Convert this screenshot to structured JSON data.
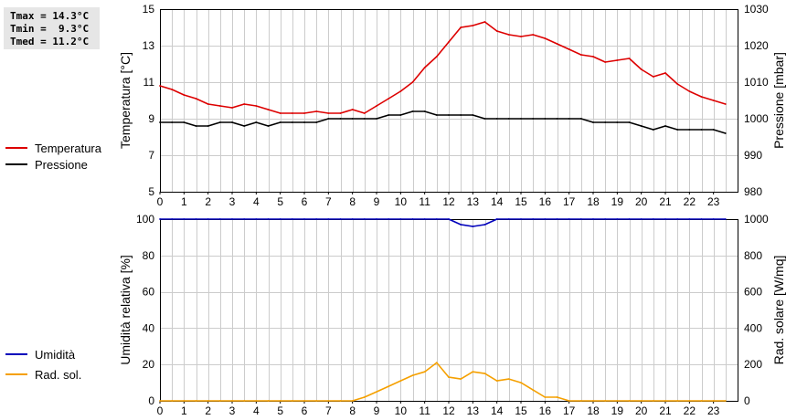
{
  "stats": {
    "tmax": "Tmax = 14.3°C",
    "tmin": "Tmin =  9.3°C",
    "tmed": "Tmed = 11.2°C"
  },
  "colors": {
    "temperature": "#dd0000",
    "pressure": "#000000",
    "humidity": "#0000bb",
    "solar": "#f5a000",
    "grid": "#cccccc"
  },
  "chart_data": [
    {
      "type": "line",
      "x_ticks": [
        "0",
        "1",
        "2",
        "3",
        "4",
        "5",
        "6",
        "7",
        "8",
        "9",
        "10",
        "11",
        "12",
        "13",
        "14",
        "15",
        "16",
        "17",
        "18",
        "19",
        "20",
        "21",
        "22",
        "23"
      ],
      "xlim": [
        0,
        24
      ],
      "ylabel": "Temperatura [°C]",
      "ylim": [
        5,
        15
      ],
      "y_ticks": [
        "5",
        "7",
        "9",
        "11",
        "13",
        "15"
      ],
      "ylabel_right": "Pressione [mbar]",
      "ylim_right": [
        980,
        1030
      ],
      "y_ticks_right": [
        "980",
        "990",
        "1000",
        "1010",
        "1020",
        "1030"
      ],
      "grid": true,
      "legend_position": "left",
      "series": [
        {
          "name": "Temperatura",
          "axis": "left",
          "x": [
            0,
            0.5,
            1,
            1.5,
            2,
            2.5,
            3,
            3.5,
            4,
            4.5,
            5,
            5.5,
            6,
            6.5,
            7,
            7.5,
            8,
            8.5,
            9,
            9.5,
            10,
            10.5,
            11,
            11.5,
            12,
            12.5,
            13,
            13.5,
            14,
            14.5,
            15,
            15.5,
            16,
            16.5,
            17,
            17.5,
            18,
            18.5,
            19,
            19.5,
            20,
            20.5,
            21,
            21.5,
            22,
            22.5,
            23,
            23.5
          ],
          "values": [
            10.8,
            10.6,
            10.3,
            10.1,
            9.8,
            9.7,
            9.6,
            9.8,
            9.7,
            9.5,
            9.3,
            9.3,
            9.3,
            9.4,
            9.3,
            9.3,
            9.5,
            9.3,
            9.7,
            10.1,
            10.5,
            11.0,
            11.8,
            12.4,
            13.2,
            14.0,
            14.1,
            14.3,
            13.8,
            13.6,
            13.5,
            13.6,
            13.4,
            13.1,
            12.8,
            12.5,
            12.4,
            12.1,
            12.2,
            12.3,
            11.7,
            11.3,
            11.5,
            10.9,
            10.5,
            10.2,
            10.0,
            9.8
          ]
        },
        {
          "name": "Pressione",
          "axis": "right",
          "x": [
            0,
            0.5,
            1,
            1.5,
            2,
            2.5,
            3,
            3.5,
            4,
            4.5,
            5,
            5.5,
            6,
            6.5,
            7,
            7.5,
            8,
            8.5,
            9,
            9.5,
            10,
            10.5,
            11,
            11.5,
            12,
            12.5,
            13,
            13.5,
            14,
            14.5,
            15,
            15.5,
            16,
            16.5,
            17,
            17.5,
            18,
            18.5,
            19,
            19.5,
            20,
            20.5,
            21,
            21.5,
            22,
            22.5,
            23,
            23.5
          ],
          "values": [
            999,
            999,
            999,
            998,
            998,
            999,
            999,
            998,
            999,
            998,
            999,
            999,
            999,
            999,
            1000,
            1000,
            1000,
            1000,
            1000,
            1001,
            1001,
            1002,
            1002,
            1001,
            1001,
            1001,
            1001,
            1000,
            1000,
            1000,
            1000,
            1000,
            1000,
            1000,
            1000,
            1000,
            999,
            999,
            999,
            999,
            998,
            997,
            998,
            997,
            997,
            997,
            997,
            996
          ]
        }
      ]
    },
    {
      "type": "line",
      "x_ticks": [
        "0",
        "1",
        "2",
        "3",
        "4",
        "5",
        "6",
        "7",
        "8",
        "9",
        "10",
        "11",
        "12",
        "13",
        "14",
        "15",
        "16",
        "17",
        "18",
        "19",
        "20",
        "21",
        "22",
        "23"
      ],
      "xlim": [
        0,
        24
      ],
      "ylabel": "Umidità relativa [%]",
      "ylim": [
        0,
        100
      ],
      "y_ticks": [
        "0",
        "20",
        "40",
        "60",
        "80",
        "100"
      ],
      "ylabel_right": "Rad. solare [W/mq]",
      "ylim_right": [
        0,
        1000
      ],
      "y_ticks_right": [
        "0",
        "200",
        "400",
        "600",
        "800",
        "1000"
      ],
      "grid": true,
      "legend_position": "left",
      "series": [
        {
          "name": "Umidità",
          "axis": "left",
          "x": [
            0,
            0.5,
            1,
            1.5,
            2,
            2.5,
            3,
            3.5,
            4,
            4.5,
            5,
            5.5,
            6,
            6.5,
            7,
            7.5,
            8,
            8.5,
            9,
            9.5,
            10,
            10.5,
            11,
            11.5,
            12,
            12.5,
            13,
            13.5,
            14,
            14.5,
            15,
            15.5,
            16,
            16.5,
            17,
            17.5,
            18,
            18.5,
            19,
            19.5,
            20,
            20.5,
            21,
            21.5,
            22,
            22.5,
            23,
            23.5
          ],
          "values": [
            100,
            100,
            100,
            100,
            100,
            100,
            100,
            100,
            100,
            100,
            100,
            100,
            100,
            100,
            100,
            100,
            100,
            100,
            100,
            100,
            100,
            100,
            100,
            100,
            100,
            97,
            96,
            97,
            100,
            100,
            100,
            100,
            100,
            100,
            100,
            100,
            100,
            100,
            100,
            100,
            100,
            100,
            100,
            100,
            100,
            100,
            100,
            100
          ]
        },
        {
          "name": "Rad. sol.",
          "axis": "right",
          "x": [
            0,
            0.5,
            1,
            1.5,
            2,
            2.5,
            3,
            3.5,
            4,
            4.5,
            5,
            5.5,
            6,
            6.5,
            7,
            7.5,
            8,
            8.5,
            9,
            9.5,
            10,
            10.5,
            11,
            11.5,
            12,
            12.5,
            13,
            13.5,
            14,
            14.5,
            15,
            15.5,
            16,
            16.5,
            17,
            17.5,
            18,
            18.5,
            19,
            19.5,
            20,
            20.5,
            21,
            21.5,
            22,
            22.5,
            23,
            23.5
          ],
          "values": [
            0,
            0,
            0,
            0,
            0,
            0,
            0,
            0,
            0,
            0,
            0,
            0,
            0,
            0,
            0,
            0,
            0,
            20,
            50,
            80,
            110,
            140,
            160,
            210,
            130,
            120,
            160,
            150,
            110,
            120,
            100,
            60,
            20,
            20,
            0,
            0,
            0,
            0,
            0,
            0,
            0,
            0,
            0,
            0,
            0,
            0,
            0,
            0
          ]
        }
      ]
    }
  ]
}
